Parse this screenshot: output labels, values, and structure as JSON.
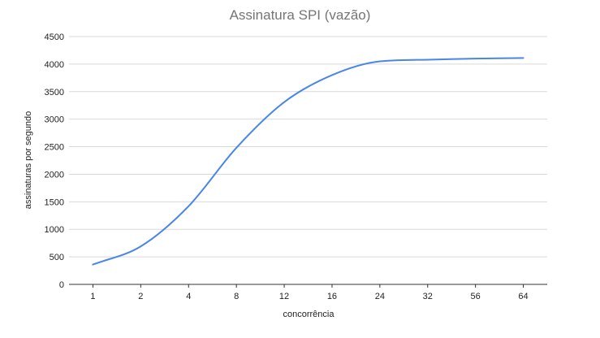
{
  "chart_data": {
    "type": "line",
    "title": "Assinatura SPI (vazão)",
    "xlabel": "concorrência",
    "ylabel": "assinaturas por segundo",
    "categories": [
      "1",
      "2",
      "4",
      "8",
      "12",
      "16",
      "24",
      "32",
      "56",
      "64"
    ],
    "series": [
      {
        "values": [
          360,
          690,
          1420,
          2480,
          3310,
          3800,
          4050,
          4080,
          4100,
          4110
        ]
      }
    ],
    "ylim": [
      0,
      4500
    ],
    "yticks": [
      "0",
      "500",
      "1000",
      "1500",
      "2000",
      "2500",
      "3000",
      "3500",
      "4000",
      "4500"
    ],
    "grid": true,
    "legend": "none",
    "colors": {
      "series": "#4a86e8",
      "grid": "#d9d9d9",
      "title": "#757575"
    }
  }
}
